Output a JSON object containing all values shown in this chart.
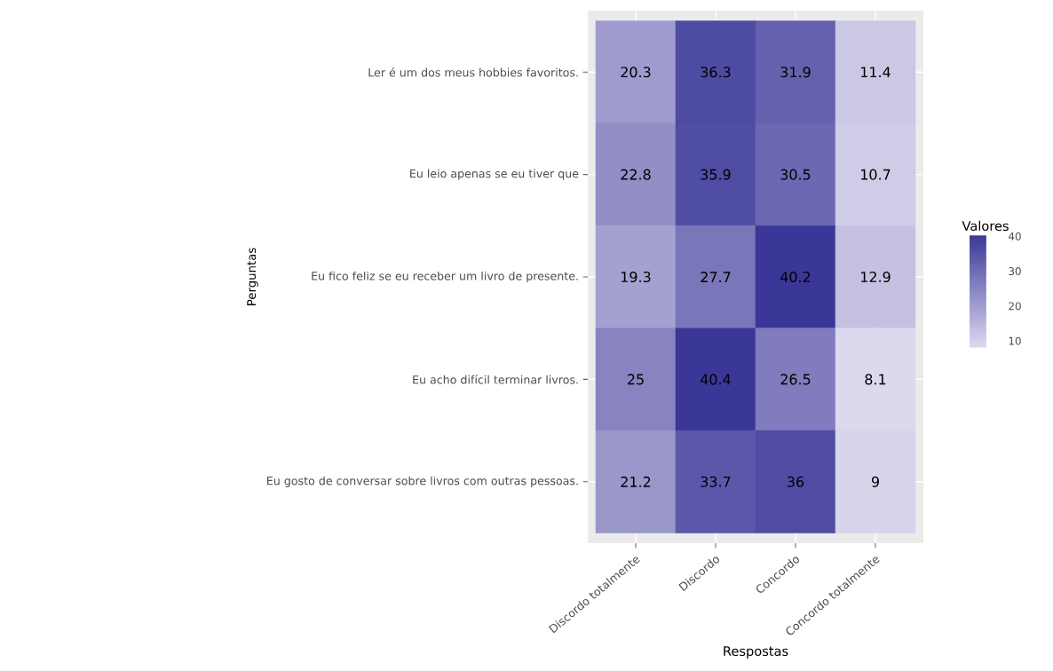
{
  "chart_data": {
    "type": "heatmap",
    "xlabel": "Respostas",
    "ylabel": "Perguntas",
    "clabel": "Valores",
    "categories": [
      "Discordo totalmente",
      "Discordo",
      "Concordo",
      "Concordo totalmente"
    ],
    "y_categories": [
      "Ler é um dos meus hobbies favoritos.",
      "Eu leio apenas se eu tiver que",
      "Eu fico feliz se eu receber um livro de presente.",
      "Eu acho difícil terminar livros.",
      "Eu gosto de conversar sobre livros com outras pessoas."
    ],
    "cells": [
      [
        20.3,
        36.3,
        31.9,
        11.4
      ],
      [
        22.8,
        35.9,
        30.5,
        10.7
      ],
      [
        19.3,
        27.7,
        40.2,
        12.9
      ],
      [
        25,
        40.4,
        26.5,
        8.1
      ],
      [
        21.2,
        33.7,
        36,
        9
      ]
    ],
    "colors": [
      "#dcd9ee",
      "#3b3799"
    ],
    "clim": [
      8.1,
      40.4
    ],
    "cticks": [
      10,
      20,
      30,
      40
    ],
    "data_labels": true,
    "grid": true
  }
}
